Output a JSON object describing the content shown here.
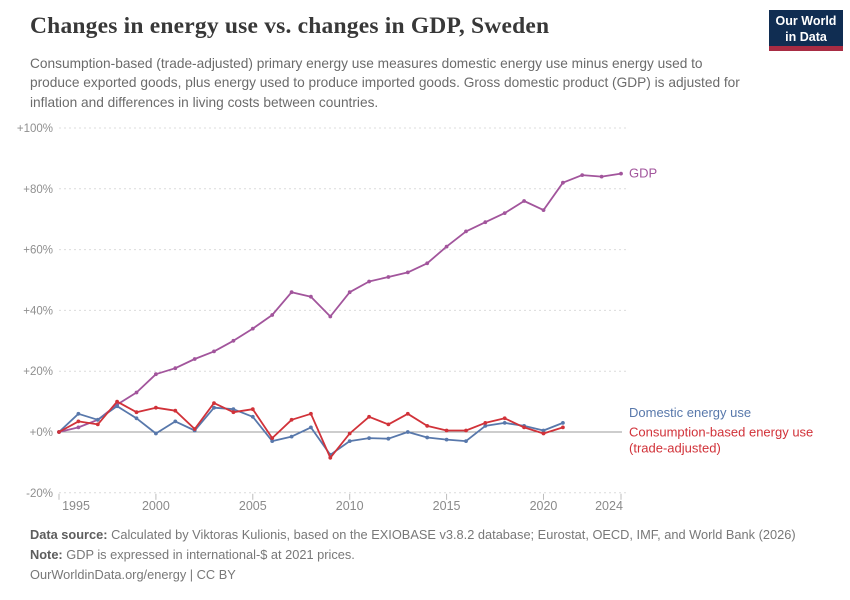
{
  "header": {
    "title": "Changes in energy use vs. changes in GDP, Sweden",
    "subtitle": "Consumption-based (trade-adjusted) primary energy use measures domestic energy use minus energy used to produce exported goods, plus energy used to produce imported goods. Gross domestic product (GDP) is adjusted for inflation and differences in living costs between countries.",
    "logo": {
      "line1": "Our World",
      "line2": "in Data",
      "bg_color": "#102d52",
      "stripe_color": "#a82c43"
    }
  },
  "chart_data": {
    "type": "line",
    "title": "Changes in energy use vs. changes in GDP, Sweden",
    "xlabel": "",
    "ylabel": "",
    "ylim": [
      -20,
      100
    ],
    "xlim": [
      1995,
      2025
    ],
    "grid": "dashed-horizontal",
    "legend_position": "right-end-labels",
    "y_ticks": [
      100,
      80,
      60,
      40,
      20,
      0,
      -20
    ],
    "y_tick_labels": [
      "+100%",
      "+80%",
      "+60%",
      "+40%",
      "+20%",
      "+0%",
      "-20%"
    ],
    "x_ticks": [
      1995,
      2000,
      2005,
      2010,
      2015,
      2020,
      2024
    ],
    "x_tick_labels": [
      "1995",
      "2000",
      "2005",
      "2010",
      "2015",
      "2020",
      "2024"
    ],
    "years": [
      1995,
      1996,
      1997,
      1998,
      1999,
      2000,
      2001,
      2002,
      2003,
      2004,
      2005,
      2006,
      2007,
      2008,
      2009,
      2010,
      2011,
      2012,
      2013,
      2014,
      2015,
      2016,
      2017,
      2018,
      2019,
      2020,
      2021,
      2022,
      2023,
      2024
    ],
    "series": [
      {
        "name": "GDP",
        "color": "#a2559c",
        "label_lines": [
          "GDP"
        ],
        "values": [
          0,
          1.5,
          4,
          9,
          13,
          19,
          21,
          24,
          26.5,
          30,
          34,
          38.5,
          46,
          44.5,
          38,
          46,
          49.5,
          51,
          52.5,
          55.5,
          61,
          66,
          69,
          72,
          76,
          73,
          82,
          84.5,
          84,
          85
        ]
      },
      {
        "name": "Domestic energy use",
        "color": "#5878ab",
        "label_lines": [
          "Domestic energy use"
        ],
        "values": [
          0,
          6,
          4,
          8.5,
          4.5,
          -0.5,
          3.5,
          0.5,
          8,
          7.5,
          5,
          -3,
          -1.5,
          1.5,
          -7.5,
          -3,
          -2,
          -2.2,
          0,
          -1.8,
          -2.5,
          -3,
          2,
          3,
          2,
          0.5,
          3,
          null,
          null,
          null
        ]
      },
      {
        "name": "Consumption-based energy use (trade-adjusted)",
        "color": "#d13239",
        "label_lines": [
          "Consumption-based energy use",
          "(trade-adjusted)"
        ],
        "values": [
          0,
          3.5,
          2.5,
          10,
          6.5,
          8,
          7,
          1,
          9.5,
          6.5,
          7.5,
          -2,
          4,
          6,
          -8.5,
          -0.5,
          5,
          2.5,
          6,
          2,
          0.5,
          0.5,
          3,
          4.5,
          1.5,
          -0.5,
          1.5,
          null,
          null,
          null
        ]
      }
    ]
  },
  "footer": {
    "lines": [
      {
        "label": "Data source:",
        "text": " Calculated by Viktoras Kulionis, based on the EXIOBASE v3.8.2 database; Eurostat, OECD, IMF, and World Bank (2026)"
      },
      {
        "label": "Note:",
        "text": " GDP is expressed in international-$ at 2021 prices."
      },
      {
        "label": "",
        "text": "OurWorldinData.org/energy | CC BY"
      }
    ]
  }
}
